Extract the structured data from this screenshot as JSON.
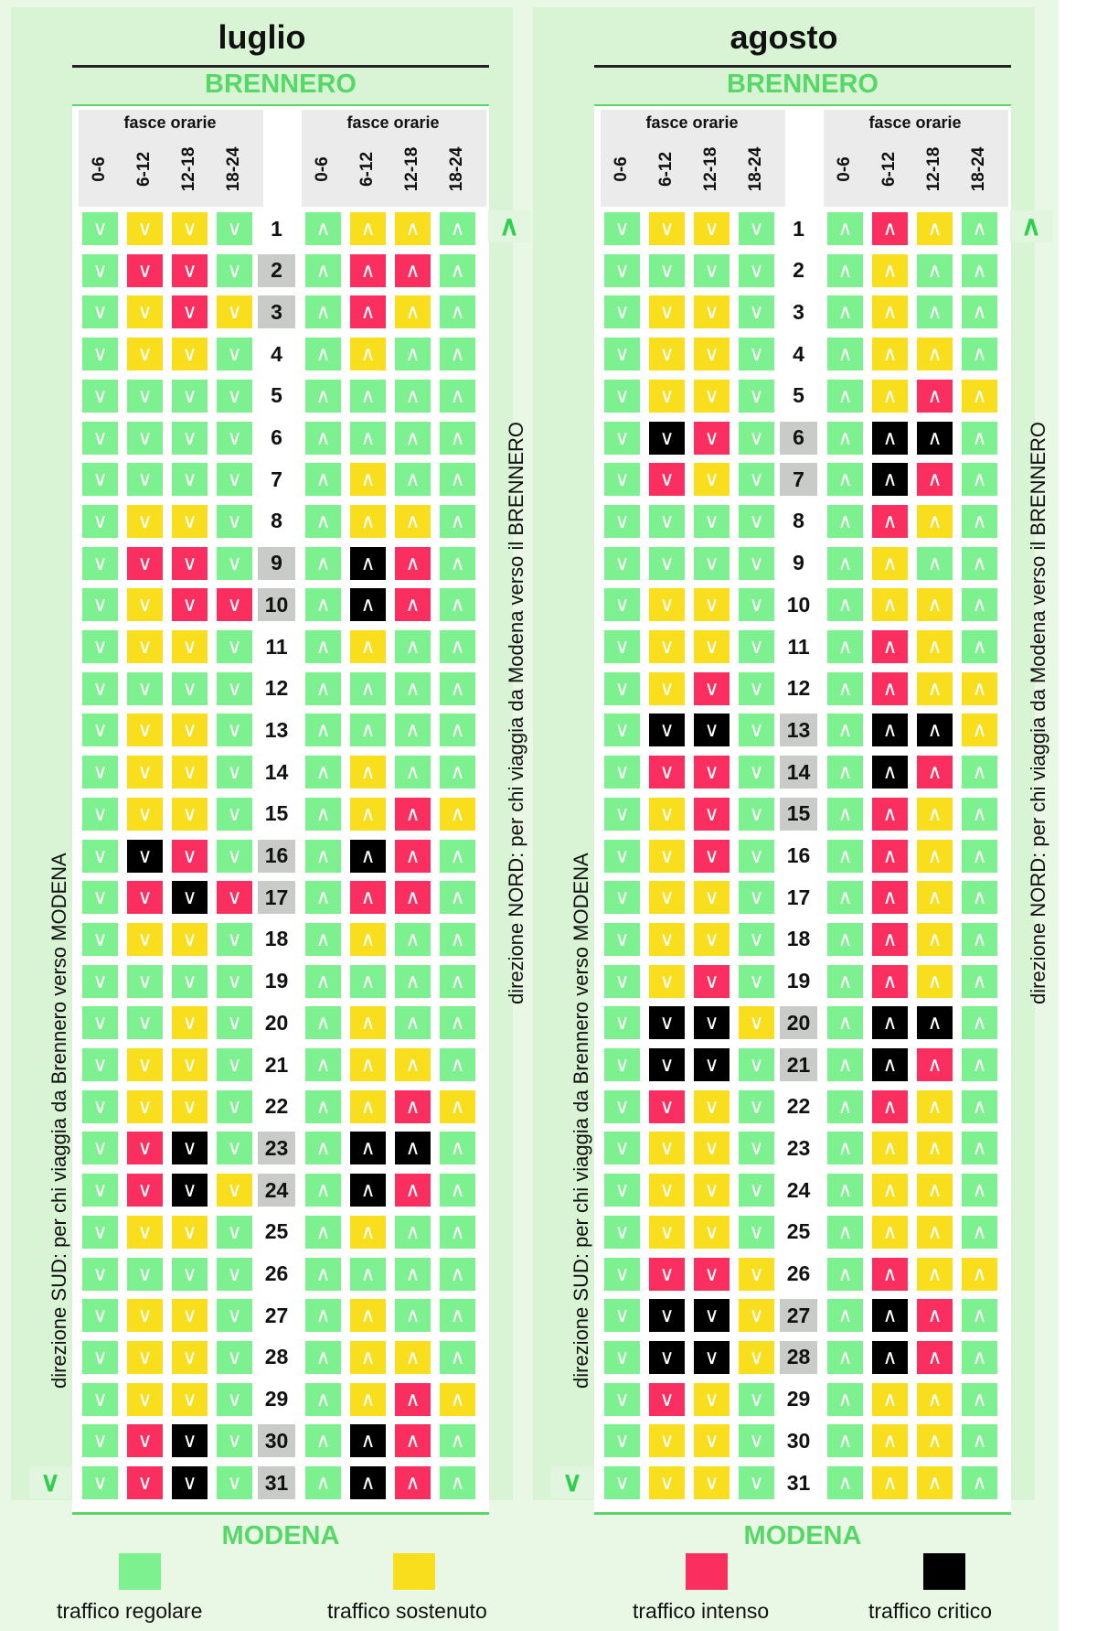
{
  "panels": [
    {
      "title": "luglio",
      "top_label": "BRENNERO",
      "bottom_label": "MODENA",
      "fasce_label": "fasce orarie",
      "slots": [
        "0-6",
        "6-12",
        "12-18",
        "18-24"
      ],
      "south_text": "direzione   SUD: per chi viaggia da Brennero verso MODENA",
      "north_text": "direzione NORD: per chi viaggia da Modena verso il BRENNERO",
      "up_arrow": "^",
      "down_arrow": "v",
      "days": [
        {
          "day": "1",
          "s": "gyyg",
          "n": "gyyg",
          "hi": false
        },
        {
          "day": "2",
          "s": "grrg",
          "n": "grrg",
          "hi": true
        },
        {
          "day": "3",
          "s": "gyry",
          "n": "gryg",
          "hi": true
        },
        {
          "day": "4",
          "s": "gyyg",
          "n": "gygg",
          "hi": false
        },
        {
          "day": "5",
          "s": "gggg",
          "n": "gggg",
          "hi": false
        },
        {
          "day": "6",
          "s": "gggg",
          "n": "gggg",
          "hi": false
        },
        {
          "day": "7",
          "s": "gggg",
          "n": "gygg",
          "hi": false
        },
        {
          "day": "8",
          "s": "gyyg",
          "n": "gyyg",
          "hi": false
        },
        {
          "day": "9",
          "s": "grrg",
          "n": "gbrg",
          "hi": true
        },
        {
          "day": "10",
          "s": "gyrr",
          "n": "gbrg",
          "hi": true
        },
        {
          "day": "11",
          "s": "gyyg",
          "n": "gygg",
          "hi": false
        },
        {
          "day": "12",
          "s": "gggg",
          "n": "gggg",
          "hi": false
        },
        {
          "day": "13",
          "s": "gyyg",
          "n": "gggg",
          "hi": false
        },
        {
          "day": "14",
          "s": "gyyg",
          "n": "gygg",
          "hi": false
        },
        {
          "day": "15",
          "s": "gyyg",
          "n": "gyry",
          "hi": false
        },
        {
          "day": "16",
          "s": "gbrg",
          "n": "gbrg",
          "hi": true
        },
        {
          "day": "17",
          "s": "grbr",
          "n": "grrg",
          "hi": true
        },
        {
          "day": "18",
          "s": "gyyg",
          "n": "gygg",
          "hi": false
        },
        {
          "day": "19",
          "s": "gggg",
          "n": "gggg",
          "hi": false
        },
        {
          "day": "20",
          "s": "ggyg",
          "n": "gygg",
          "hi": false
        },
        {
          "day": "21",
          "s": "gyyg",
          "n": "gyyg",
          "hi": false
        },
        {
          "day": "22",
          "s": "gyyg",
          "n": "gyry",
          "hi": false
        },
        {
          "day": "23",
          "s": "grbg",
          "n": "gbbg",
          "hi": true
        },
        {
          "day": "24",
          "s": "grby",
          "n": "gbrg",
          "hi": true
        },
        {
          "day": "25",
          "s": "gyyg",
          "n": "gygg",
          "hi": false
        },
        {
          "day": "26",
          "s": "gggg",
          "n": "gggg",
          "hi": false
        },
        {
          "day": "27",
          "s": "gyyg",
          "n": "gygg",
          "hi": false
        },
        {
          "day": "28",
          "s": "gyyg",
          "n": "gyyg",
          "hi": false
        },
        {
          "day": "29",
          "s": "gyyg",
          "n": "gyry",
          "hi": false
        },
        {
          "day": "30",
          "s": "grbg",
          "n": "gbrg",
          "hi": true
        },
        {
          "day": "31",
          "s": "grbg",
          "n": "gbrg",
          "hi": true
        }
      ]
    },
    {
      "title": "agosto",
      "top_label": "BRENNERO",
      "bottom_label": "MODENA",
      "fasce_label": "fasce orarie",
      "slots": [
        "0-6",
        "6-12",
        "12-18",
        "18-24"
      ],
      "south_text": "direzione   SUD: per chi viaggia da Brennero verso MODENA",
      "north_text": "direzione NORD: per chi viaggia da Modena verso il BRENNERO",
      "up_arrow": "^",
      "down_arrow": "v",
      "days": [
        {
          "day": "1",
          "s": "gyyg",
          "n": "gryg",
          "hi": false
        },
        {
          "day": "2",
          "s": "gggg",
          "n": "gygg",
          "hi": false
        },
        {
          "day": "3",
          "s": "gyyg",
          "n": "gygg",
          "hi": false
        },
        {
          "day": "4",
          "s": "gyyg",
          "n": "gyyg",
          "hi": false
        },
        {
          "day": "5",
          "s": "gyyg",
          "n": "gyry",
          "hi": false
        },
        {
          "day": "6",
          "s": "gbrg",
          "n": "gbbg",
          "hi": true
        },
        {
          "day": "7",
          "s": "gryg",
          "n": "gbrg",
          "hi": true
        },
        {
          "day": "8",
          "s": "gggg",
          "n": "gryg",
          "hi": false
        },
        {
          "day": "9",
          "s": "gggg",
          "n": "gygg",
          "hi": false
        },
        {
          "day": "10",
          "s": "gyyg",
          "n": "gyyg",
          "hi": false
        },
        {
          "day": "11",
          "s": "gyyg",
          "n": "gryg",
          "hi": false
        },
        {
          "day": "12",
          "s": "gyrg",
          "n": "gryy",
          "hi": false
        },
        {
          "day": "13",
          "s": "gbbg",
          "n": "gbby",
          "hi": true
        },
        {
          "day": "14",
          "s": "grrg",
          "n": "gbrg",
          "hi": true
        },
        {
          "day": "15",
          "s": "gyrg",
          "n": "gryg",
          "hi": true
        },
        {
          "day": "16",
          "s": "gyrg",
          "n": "gryg",
          "hi": false
        },
        {
          "day": "17",
          "s": "gyyg",
          "n": "gryg",
          "hi": false
        },
        {
          "day": "18",
          "s": "gyyg",
          "n": "gryg",
          "hi": false
        },
        {
          "day": "19",
          "s": "gyrg",
          "n": "gryg",
          "hi": false
        },
        {
          "day": "20",
          "s": "gbby",
          "n": "gbbg",
          "hi": true
        },
        {
          "day": "21",
          "s": "gbbg",
          "n": "gbrg",
          "hi": true
        },
        {
          "day": "22",
          "s": "gryg",
          "n": "gryg",
          "hi": false
        },
        {
          "day": "23",
          "s": "gyyg",
          "n": "gyyg",
          "hi": false
        },
        {
          "day": "24",
          "s": "gyyg",
          "n": "gyyg",
          "hi": false
        },
        {
          "day": "25",
          "s": "gyyg",
          "n": "gyyg",
          "hi": false
        },
        {
          "day": "26",
          "s": "grry",
          "n": "gryy",
          "hi": false
        },
        {
          "day": "27",
          "s": "gbby",
          "n": "gbrg",
          "hi": true
        },
        {
          "day": "28",
          "s": "gbby",
          "n": "gbrg",
          "hi": true
        },
        {
          "day": "29",
          "s": "gryg",
          "n": "gyyg",
          "hi": false
        },
        {
          "day": "30",
          "s": "gyyg",
          "n": "gyyg",
          "hi": false
        },
        {
          "day": "31",
          "s": "gyyg",
          "n": "gyyg",
          "hi": false
        }
      ]
    }
  ],
  "colors": {
    "g": "#7df08f",
    "y": "#f8de1c",
    "r": "#fb2e60",
    "b": "#000000"
  },
  "legend": [
    {
      "key": "g",
      "label": "traffico regolare"
    },
    {
      "key": "y",
      "label": "traffico sostenuto"
    },
    {
      "key": "r",
      "label": "traffico intenso"
    },
    {
      "key": "b",
      "label": "traffico critico"
    }
  ]
}
